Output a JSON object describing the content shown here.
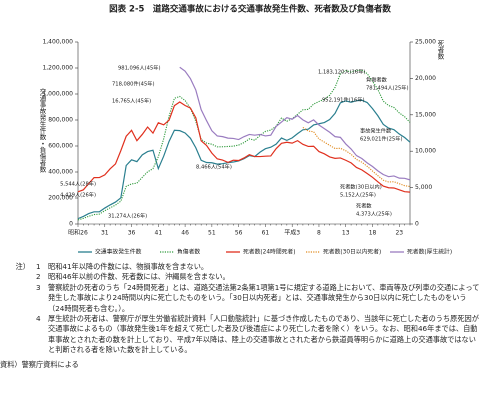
{
  "chart_data": {
    "type": "line",
    "title": "図表 2-5　道路交通事故における交通事故発生件数、死者数及び負傷者数",
    "ylabel": "交通事故発生件数・負傷者数",
    "y2label": "死者数",
    "categories": [
      "昭和26",
      null,
      null,
      null,
      null,
      "31",
      null,
      null,
      null,
      null,
      "36",
      null,
      null,
      null,
      null,
      "41",
      null,
      null,
      null,
      null,
      "46",
      null,
      null,
      null,
      null,
      "51",
      null,
      null,
      null,
      null,
      "56",
      null,
      null,
      null,
      null,
      "61",
      null,
      null,
      null,
      null,
      "平成3",
      null,
      null,
      null,
      null,
      "8",
      null,
      null,
      null,
      null,
      "13",
      null,
      null,
      null,
      null,
      "18",
      null,
      null,
      null,
      null,
      "23",
      null,
      null
    ],
    "ylim": [
      0,
      1400000
    ],
    "yticks": [
      0,
      {
        "value": 200000,
        "label": "200,000"
      },
      {
        "value": 400000,
        "label": "400,000"
      },
      {
        "value": 600000,
        "label": "600,000"
      },
      {
        "value": 800000,
        "label": "800,000"
      },
      {
        "value": 1000000,
        "label": "1,000,000"
      },
      {
        "value": 1200000,
        "label": "1,200,000"
      },
      {
        "value": 1400000,
        "label": "1,400,000"
      }
    ],
    "y2lim": [
      0,
      25000
    ],
    "y2ticks": [
      0,
      {
        "value": 5000,
        "label": "5,000"
      },
      {
        "value": 10000,
        "label": "10,000"
      },
      {
        "value": 15000,
        "label": "15,000"
      },
      {
        "value": 20000,
        "label": "20,000"
      },
      {
        "value": 25000,
        "label": "25,000"
      }
    ],
    "grid": false,
    "series": [
      {
        "name": "交通事故発生件数",
        "color": "#2a7f8f",
        "line_style": "solid",
        "values": [
          41423,
          58487,
          80019,
          93869,
          93981,
          122691,
          146833,
          168799,
          201292,
          449917,
          493693,
          479825,
          531966,
          557183,
          567286,
          425944,
          521481,
          635056,
          720880,
          718080,
          700290,
          659283,
          586713,
          490452,
          472938,
          471041,
          460649,
          464037,
          471573,
          476677,
          485578,
          502261,
          526362,
          518642,
          552788,
          579190,
          590723,
          614481,
          661363,
          643097,
          662388,
          695345,
          724678,
          729461,
          761794,
          771085,
          780401,
          803882,
          850371,
          931950,
          947253,
          936950,
          948281,
          952191,
          934346,
          887267,
          832704,
          766394,
          737637,
          725924,
          692084,
          665157,
          629021
        ]
      },
      {
        "name": "負傷者数",
        "color": "#2f9a3c",
        "line_style": "dotted",
        "values": [
          31274,
          43321,
          59280,
          72390,
          76501,
          102072,
          124530,
          145432,
          175951,
          289156,
          308697,
          313813,
          359089,
          401117,
          425666,
          517775,
          655377,
          828071,
          967000,
          981096,
          949689,
          889198,
          789948,
          651420,
          622467,
          613957,
          593211,
          594116,
          596282,
          598719,
          607346,
          626192,
          654822,
          644321,
          681346,
          712330,
          722179,
          752845,
          814832,
          790295,
          810245,
          844003,
          878633,
          881723,
          922677,
          942204,
          958925,
          990675,
          1050399,
          1155707,
          1181039,
          1168029,
          1181681,
          1183120,
          1157113,
          1098564,
          1034652,
          945703,
          911215,
          896297,
          854613,
          825392,
          781494
        ]
      },
      {
        "name": "死者数(24時間死者)",
        "color": "#e0301e",
        "line_style": "solid",
        "axis": "y2",
        "values": [
          4429,
          4696,
          5544,
          6374,
          6379,
          6751,
          7575,
          8248,
          10079,
          12055,
          12865,
          11445,
          12301,
          13318,
          12484,
          13904,
          13618,
          14256,
          16257,
          16765,
          16278,
          15918,
          14574,
          11432,
          10792,
          9734,
          8945,
          8783,
          8466,
          8760,
          8719,
          9073,
          9520,
          9262,
          9261,
          9317,
          9347,
          10344,
          11086,
          11227,
          11109,
          11452,
          10945,
          10653,
          10684,
          9943,
          9642,
          9214,
          9012,
          9073,
          8757,
          8396,
          7768,
          7436,
          6937,
          6415,
          5796,
          5209,
          4979,
          4948,
          4691,
          4438,
          4373
        ]
      },
      {
        "name": "死者数(30日以内死者)",
        "color": "#e08a1e",
        "line_style": "dotted",
        "axis": "y2",
        "values": [
          null,
          null,
          null,
          null,
          null,
          null,
          null,
          null,
          null,
          null,
          null,
          null,
          null,
          null,
          null,
          null,
          null,
          null,
          null,
          null,
          null,
          null,
          null,
          null,
          null,
          null,
          null,
          null,
          null,
          null,
          null,
          null,
          null,
          null,
          null,
          null,
          null,
          null,
          null,
          null,
          null,
          null,
          13269,
          12768,
          12670,
          11674,
          11254,
          10805,
          10372,
          10403,
          10060,
          9575,
          8877,
          8492,
          7931,
          7272,
          6639,
          6023,
          5772,
          5806,
          5535,
          5261,
          5152
        ]
      },
      {
        "name": "死者数(厚生統計)",
        "color": "#9a7cc0",
        "line_style": "solid",
        "axis": "y2",
        "values": [
          null,
          null,
          null,
          null,
          null,
          null,
          null,
          null,
          null,
          null,
          null,
          null,
          null,
          null,
          null,
          null,
          null,
          null,
          null,
          21535,
          20998,
          19957,
          18400,
          15700,
          14206,
          12800,
          12100,
          12000,
          11800,
          11752,
          11600,
          12000,
          12300,
          12200,
          12300,
          12100,
          12200,
          13400,
          14000,
          14600,
          14400,
          14900,
          14300,
          13900,
          14300,
          13600,
          13100,
          12600,
          12000,
          11900,
          11000,
          10300,
          9400,
          9000,
          8400,
          7900,
          7300,
          6800,
          6500,
          6600,
          6300,
          6277,
          6060
        ]
      }
    ],
    "annotations": [
      "981,096人(45年)",
      "718,080件(45年)",
      "16,765人(45年)",
      "8,466人(54年)",
      "5,544人(28年)",
      "4,429人(26年)",
      "31,274人(26年)",
      "1,183,120人(16年)",
      "952,191件(16年)",
      "負傷者数",
      "781,494人(25年)",
      "事故発生件数",
      "629,021件(25年)",
      "死者数(30日以内)",
      "5,152人(25年)",
      "死者数",
      "4,373人(25年)"
    ]
  },
  "notes": {
    "label": "注）",
    "items": [
      {
        "number": "1",
        "text": "昭和41年以降の件数には、物損事故を含まない。"
      },
      {
        "number": "2",
        "text": "昭和46年以前の件数、死者数には、沖縄県を含まない。"
      },
      {
        "number": "3",
        "text": "警察統計の死者のうち「24時間死者」とは、道路交通法第2条第1項第1号に規定する道路上において、車両等及び列車の交通によって発生した事故により24時間以内に死亡したものをいう。「30日以内死者」とは、交通事故発生から30日以内に死亡したものをいう（24時間死者も含む。）。"
      },
      {
        "number": "4",
        "text": "厚生統計の死者は、警察庁が厚生労働省統計資料「人口動態統計」に基づき作成したものであり、当該年に死亡した者のうち原死因が交通事故によるもの（事故発生後1年を超えて死亡した者及び後遺症により死亡した者を除く）をいう。なお、昭和46年までは、自動車事故とされた者の数を計上しており、平成7年以降は、陸上の交通事故とされた者から鉄道員等明らかに道路上の交通事故ではないと判断される者を除いた数を計上している。"
      }
    ],
    "source": "資料）警察庁資料による"
  }
}
